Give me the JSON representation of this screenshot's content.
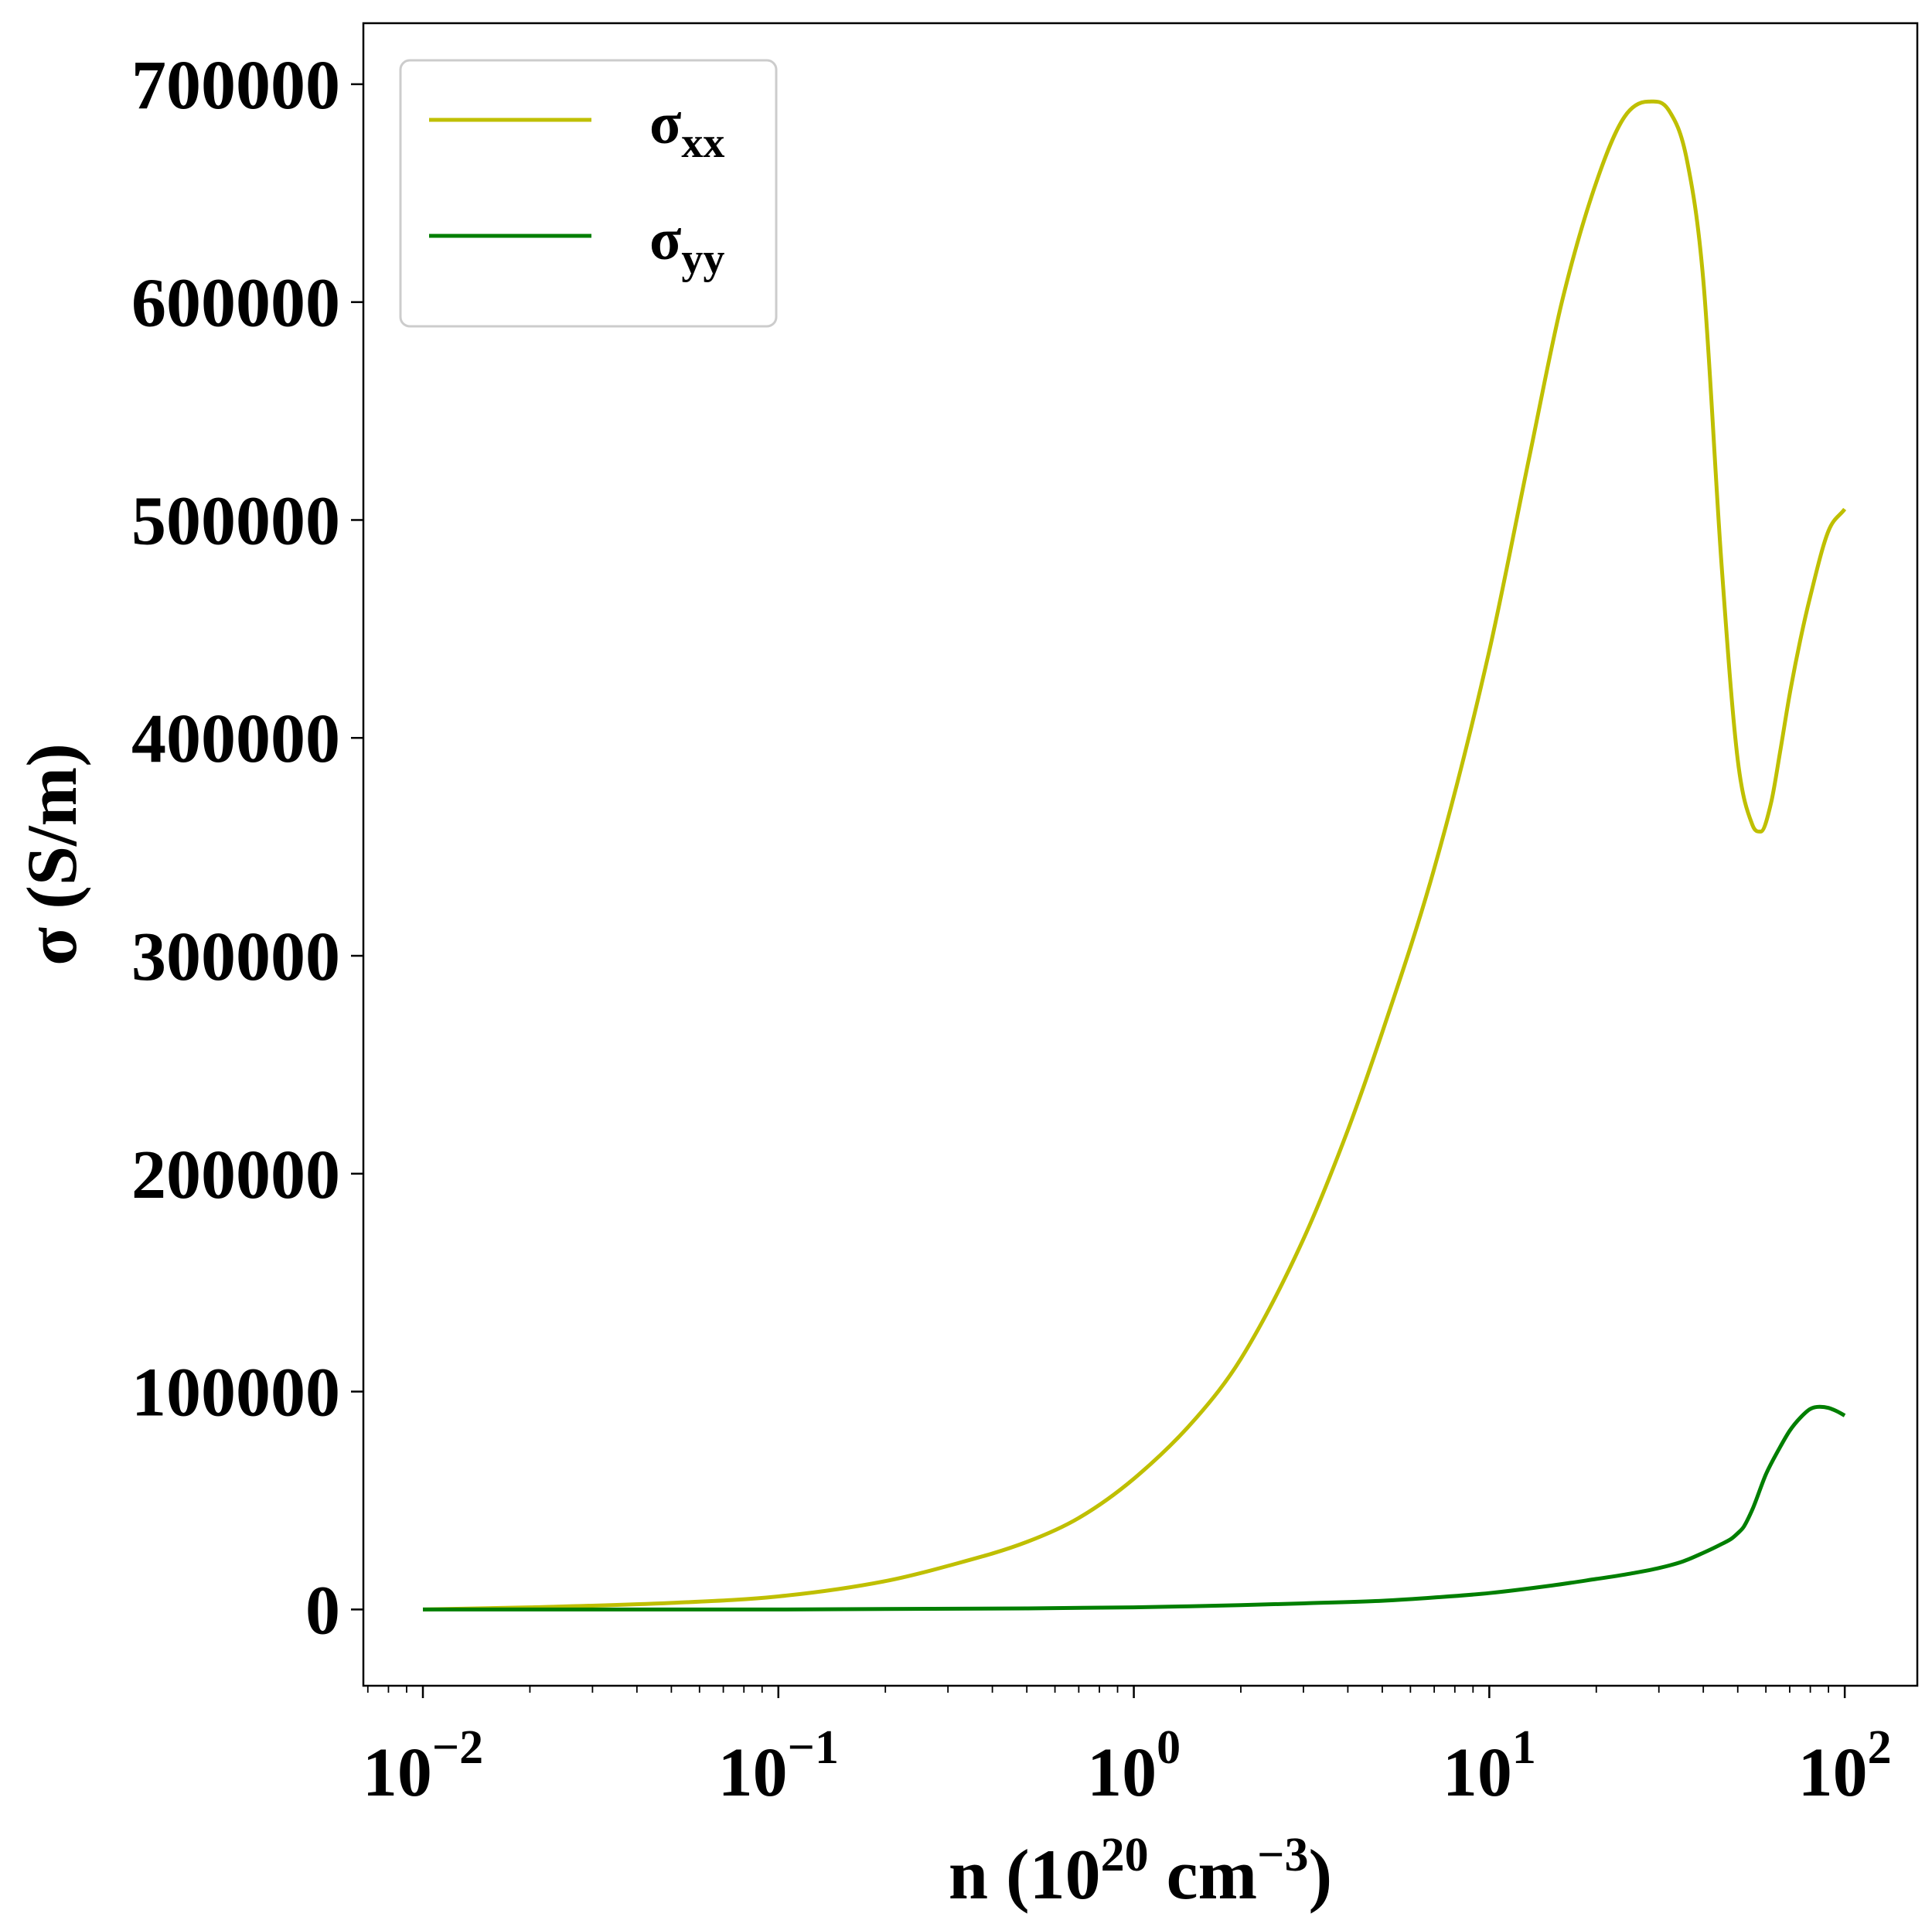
{
  "chart_data": {
    "type": "line",
    "xscale": "log",
    "xlim": [
      0.0068,
      160
    ],
    "ylim": [
      -35000,
      728000
    ],
    "grid": false,
    "legend_position": "top-left",
    "xlabel": {
      "base": "n (10",
      "sup1": "20",
      "mid": " cm",
      "sup2": "−3",
      "end": ")"
    },
    "ylabel": "σ (S/m)",
    "x_ticks": [
      {
        "value": 0.01,
        "base": "10",
        "exp": "−2"
      },
      {
        "value": 0.1,
        "base": "10",
        "exp": "−1"
      },
      {
        "value": 1,
        "base": "10",
        "exp": "0"
      },
      {
        "value": 10,
        "base": "10",
        "exp": "1"
      },
      {
        "value": 100,
        "base": "10",
        "exp": "2"
      }
    ],
    "y_ticks": [
      {
        "value": 0,
        "label": "0"
      },
      {
        "value": 100000,
        "label": "100000"
      },
      {
        "value": 200000,
        "label": "200000"
      },
      {
        "value": 300000,
        "label": "300000"
      },
      {
        "value": 400000,
        "label": "400000"
      },
      {
        "value": 500000,
        "label": "500000"
      },
      {
        "value": 600000,
        "label": "600000"
      },
      {
        "value": 700000,
        "label": "700000"
      }
    ],
    "series": [
      {
        "name": "xx",
        "legend": {
          "symbol": "σ",
          "sub": "xx"
        },
        "color": "#bfbf00",
        "x": [
          0.01,
          0.02,
          0.05,
          0.1,
          0.2,
          0.3,
          0.5,
          0.7,
          1,
          1.5,
          2,
          3,
          4,
          5,
          7,
          10,
          13,
          16,
          20,
          24,
          28,
          32,
          36,
          40,
          45,
          50,
          55,
          58,
          62,
          66,
          70,
          75,
          80,
          90,
          100
        ],
        "y": [
          0,
          1000,
          3000,
          6000,
          13000,
          20000,
          31000,
          42000,
          60000,
          88000,
          115000,
          170000,
          220000,
          265000,
          340000,
          440000,
          530000,
          600000,
          655000,
          685000,
          692000,
          688000,
          665000,
          610000,
          480000,
          390000,
          360000,
          357000,
          370000,
          395000,
          420000,
          445000,
          465000,
          495000,
          505000
        ]
      },
      {
        "name": "yy",
        "legend": {
          "symbol": "σ",
          "sub": "yy"
        },
        "color": "#007f00",
        "x": [
          0.01,
          0.1,
          0.5,
          1,
          2,
          3,
          5,
          7,
          10,
          15,
          20,
          25,
          30,
          35,
          40,
          45,
          48,
          50,
          52,
          55,
          60,
          65,
          70,
          75,
          80,
          85,
          90,
          95,
          100
        ],
        "y": [
          0,
          0,
          500,
          1000,
          2000,
          2800,
          4000,
          5500,
          7500,
          11000,
          14000,
          16500,
          19000,
          22000,
          26000,
          30000,
          32500,
          35000,
          38000,
          46000,
          62000,
          73000,
          82000,
          88000,
          92000,
          93000,
          92500,
          91000,
          89000
        ]
      }
    ]
  }
}
